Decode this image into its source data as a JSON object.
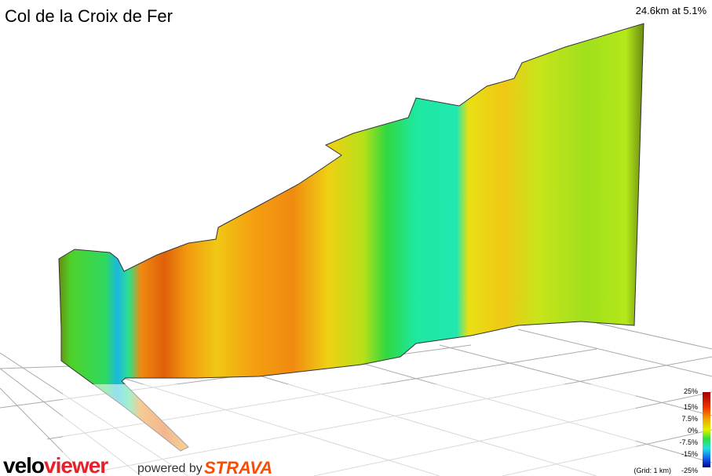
{
  "header": {
    "title": "Col de la Croix de Fer",
    "summary": "24.6km at 5.1%"
  },
  "legend": {
    "labels": [
      "25%",
      "15%",
      "7.5%",
      "0%",
      "-7.5%",
      "-15%",
      "-25%"
    ],
    "grid_note": "(Grid: 1 km)"
  },
  "footer": {
    "brand_first": "velo",
    "brand_second": "viewer",
    "powered_by": "powered by",
    "partner": "STRAVA"
  }
}
